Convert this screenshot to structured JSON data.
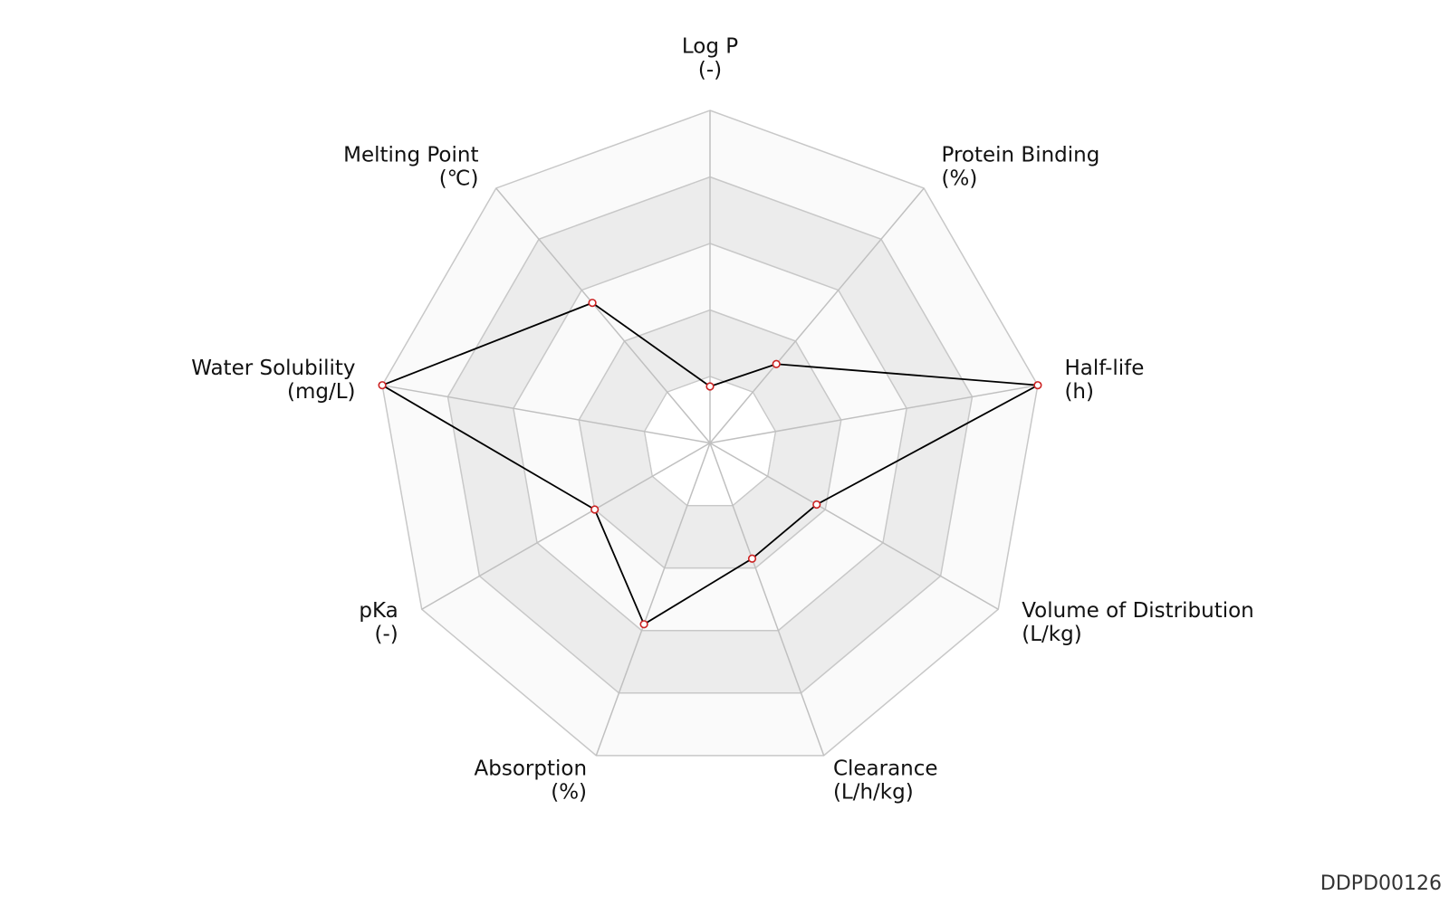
{
  "chart_data": {
    "type": "radar",
    "categories": [
      "Log P",
      "Protein Binding",
      "Half-life",
      "Volume of Distribution",
      "Clearance",
      "Absorption",
      "pKa",
      "Water Solubility",
      "Melting Point"
    ],
    "units": [
      "(-)",
      "(%)",
      "(h)",
      "(L/kg)",
      "(L/h/kg)",
      "(%)",
      "(-)",
      "(mg/L)",
      "(℃)"
    ],
    "values": [
      0.17,
      0.31,
      1.0,
      0.37,
      0.37,
      0.58,
      0.4,
      1.0,
      0.55
    ],
    "rlim": [
      0,
      1
    ],
    "rticks": [
      0.2,
      0.4,
      0.6,
      0.8,
      1.0
    ],
    "line_color": "#000000",
    "marker_color": "#cc2222",
    "grid": true
  },
  "footer": "DDPD00126"
}
